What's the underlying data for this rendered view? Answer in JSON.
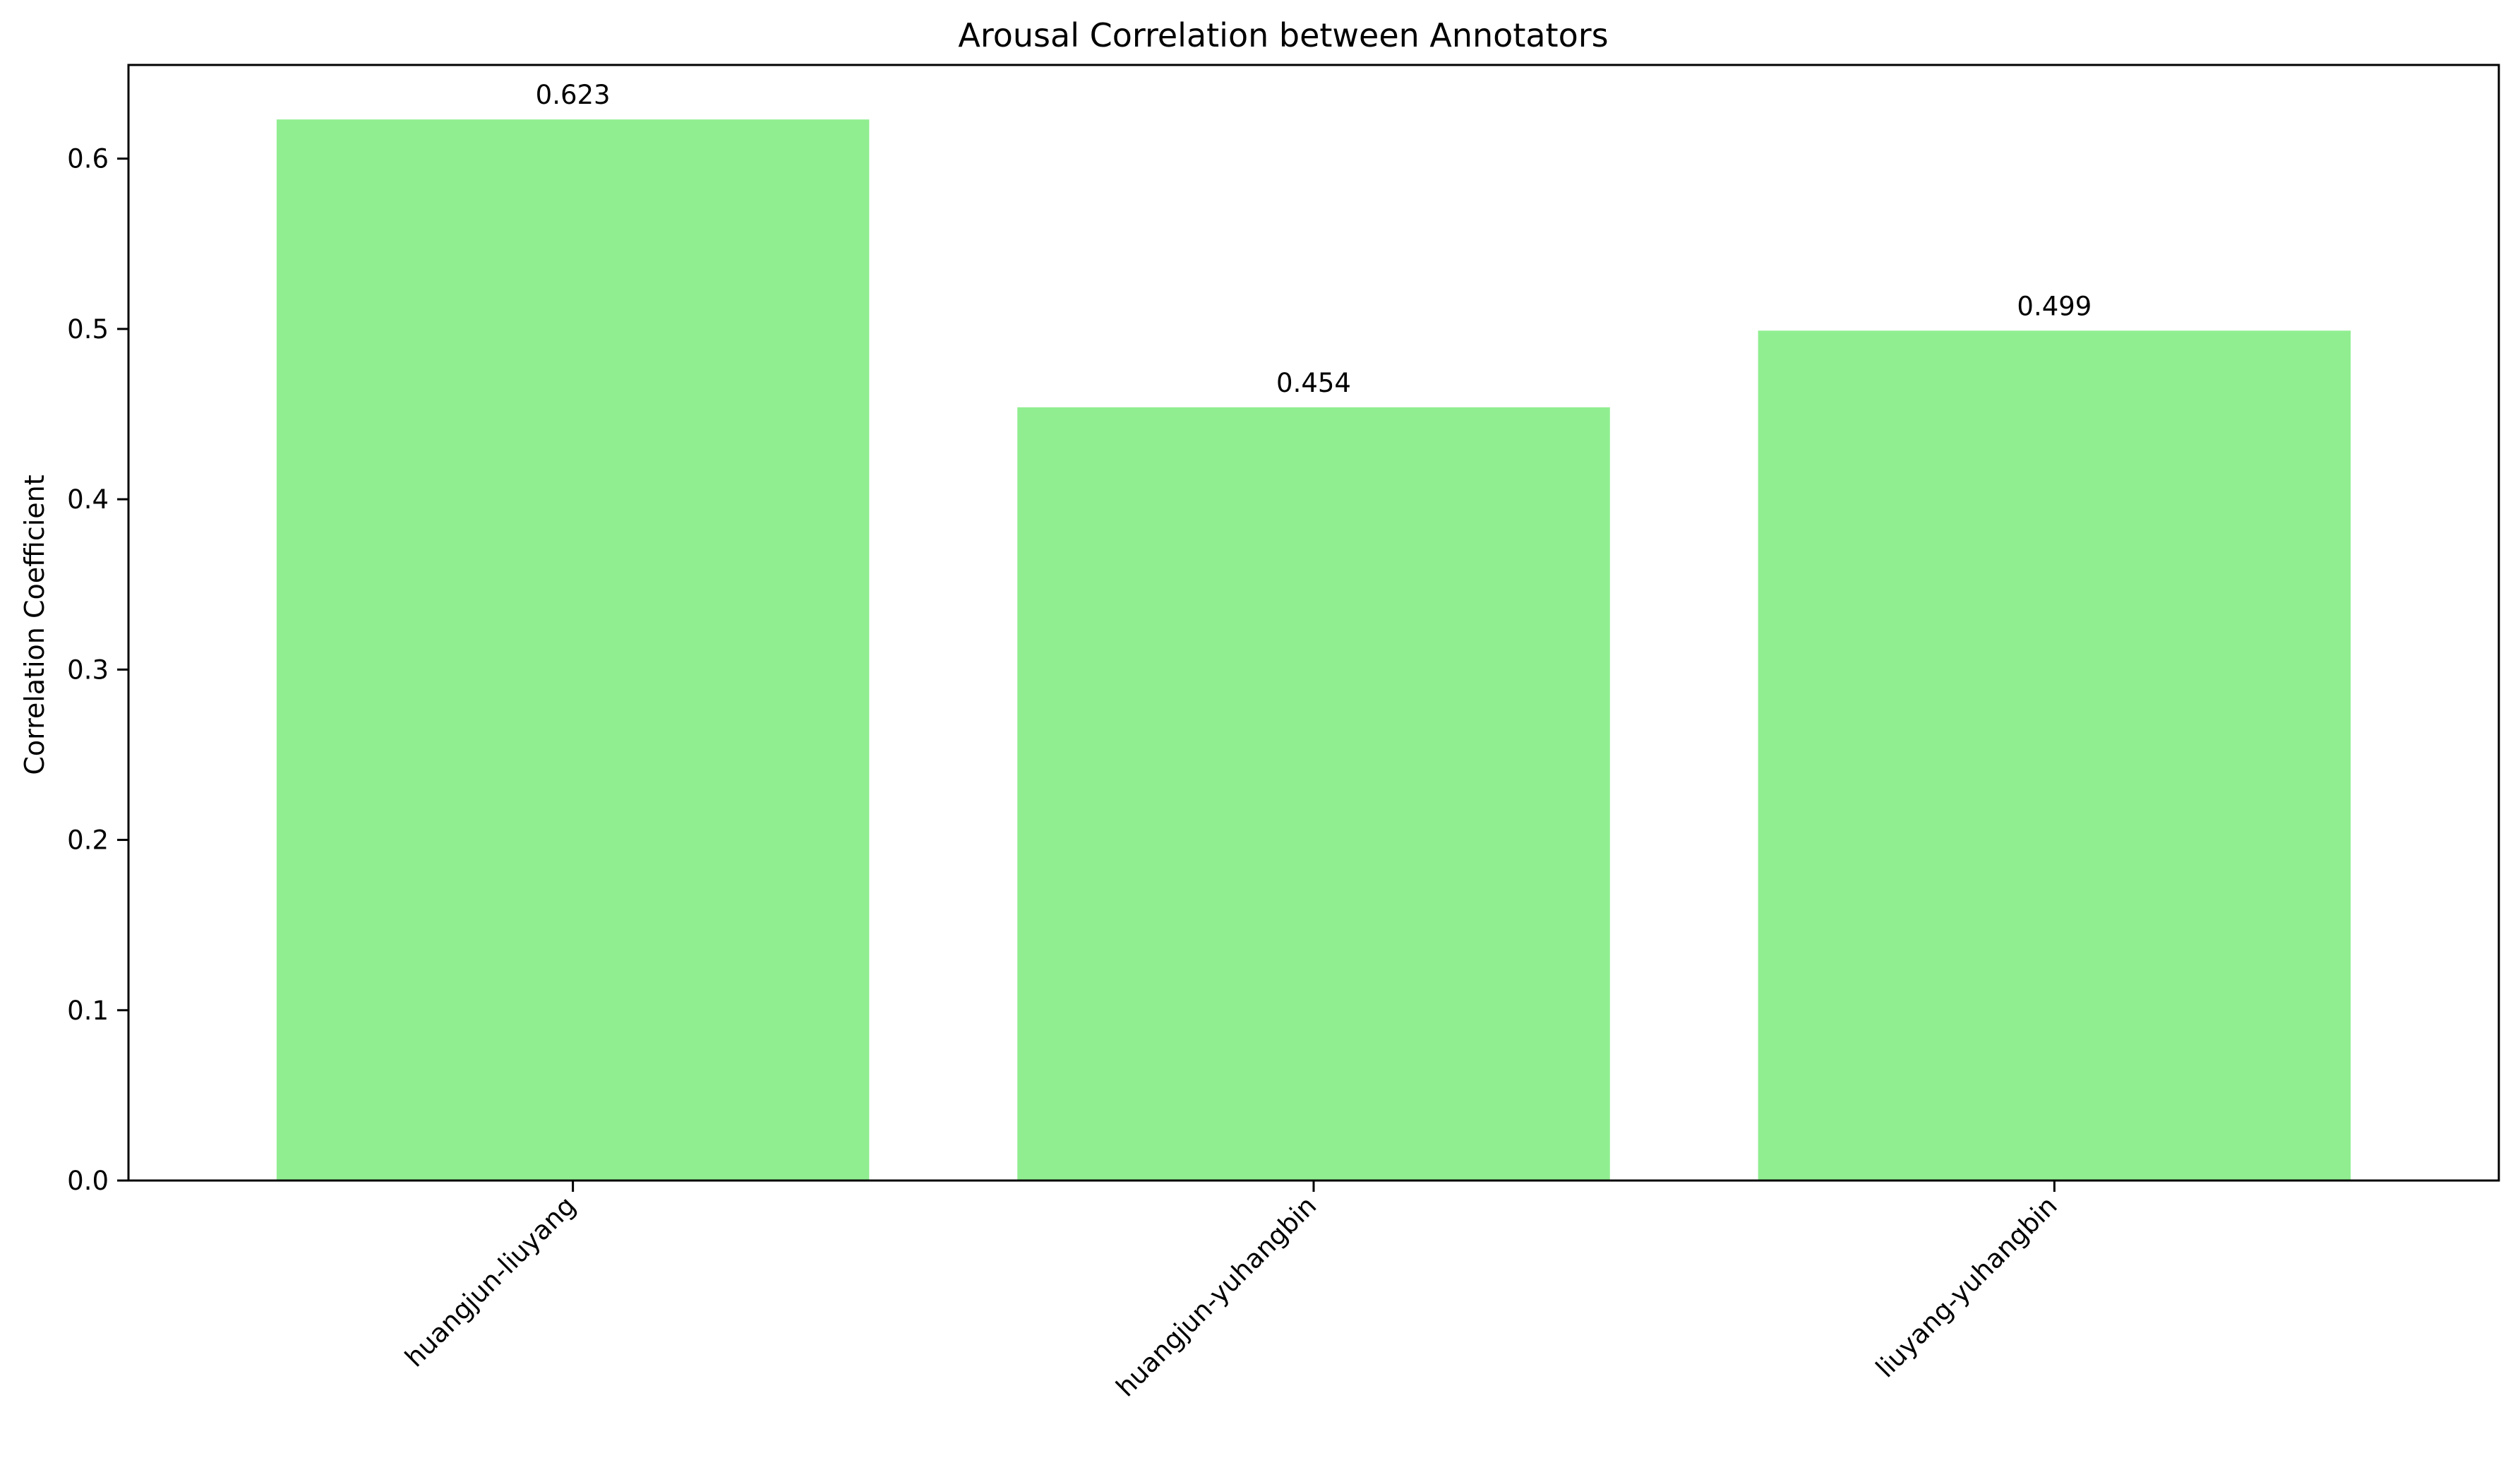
{
  "chart_data": {
    "type": "bar",
    "title": "Arousal Correlation between Annotators",
    "xlabel": "",
    "ylabel": "Correlation Coefficient",
    "categories": [
      "huangjun-liuyang",
      "huangjun-yuhangbin",
      "liuyang-yuhangbin"
    ],
    "values": [
      0.623,
      0.454,
      0.499
    ],
    "data_labels": [
      "0.623",
      "0.454",
      "0.499"
    ],
    "ylim": [
      0,
      0.655
    ],
    "yticks": [
      0.0,
      0.1,
      0.2,
      0.3,
      0.4,
      0.5,
      0.6
    ],
    "ytick_labels": [
      "0.0",
      "0.1",
      "0.2",
      "0.3",
      "0.4",
      "0.5",
      "0.6"
    ],
    "grid": false,
    "legend": "none",
    "bar_color": "#90ee90",
    "xtick_rotation": 45
  }
}
